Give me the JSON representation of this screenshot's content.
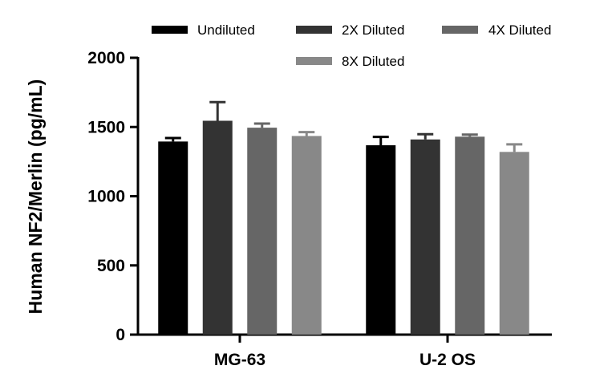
{
  "chart_data": {
    "type": "bar",
    "title": "",
    "xlabel": "",
    "ylabel": "Human NF2/Merlin (pg/mL)",
    "ylim": [
      0,
      2000
    ],
    "yticks": [
      "0",
      "500",
      "1000",
      "1500",
      "2000"
    ],
    "categories": [
      "MG-63",
      "U-2 OS"
    ],
    "series": [
      {
        "name": "Undiluted",
        "color": "#000000",
        "values": [
          1395,
          1368
        ],
        "errors": [
          25,
          60
        ]
      },
      {
        "name": "2X Diluted",
        "color": "#333333",
        "values": [
          1545,
          1410
        ],
        "errors": [
          135,
          38
        ]
      },
      {
        "name": "4X Diluted",
        "color": "#666666",
        "values": [
          1495,
          1430
        ],
        "errors": [
          30,
          15
        ]
      },
      {
        "name": "8X Diluted",
        "color": "#888888",
        "values": [
          1435,
          1320
        ],
        "errors": [
          28,
          55
        ]
      }
    ],
    "legend": "top",
    "grid": false
  }
}
